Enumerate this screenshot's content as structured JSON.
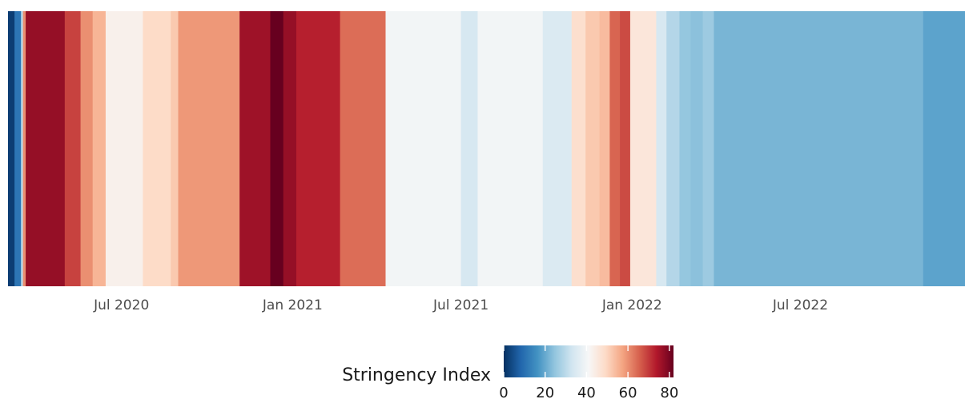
{
  "chart_data": {
    "type": "heatmap",
    "title": "",
    "xlabel": "",
    "ylabel": "",
    "x_ticks": [
      "Jul 2020",
      "Jan 2021",
      "Jul 2021",
      "Jan 2022",
      "Jul 2022"
    ],
    "x_tick_dates": [
      "2020-07-01",
      "2021-01-01",
      "2021-07-01",
      "2022-01-01",
      "2022-07-01"
    ],
    "xlim": [
      "2020-03-01",
      "2022-12-25"
    ],
    "grid": false,
    "colorbar": {
      "title": "Stringency Index",
      "ticks": [
        0,
        20,
        40,
        60,
        80
      ],
      "range": [
        0,
        82
      ],
      "palette": [
        "#053061",
        "#2166ac",
        "#4393c3",
        "#92c5de",
        "#d1e5f0",
        "#f7f7f7",
        "#fddbc7",
        "#f4a582",
        "#d6604d",
        "#b2182b",
        "#67001f"
      ],
      "placement": "bottom"
    },
    "segments": [
      {
        "start": "2020-03-01",
        "end": "2020-03-08",
        "value": 2
      },
      {
        "start": "2020-03-08",
        "end": "2020-03-15",
        "value": 11
      },
      {
        "start": "2020-03-15",
        "end": "2020-03-17",
        "value": 30
      },
      {
        "start": "2020-03-17",
        "end": "2020-03-20",
        "value": 60
      },
      {
        "start": "2020-03-20",
        "end": "2020-05-01",
        "value": 77
      },
      {
        "start": "2020-05-01",
        "end": "2020-05-18",
        "value": 69
      },
      {
        "start": "2020-05-18",
        "end": "2020-05-31",
        "value": 60
      },
      {
        "start": "2020-05-31",
        "end": "2020-06-14",
        "value": 55
      },
      {
        "start": "2020-06-14",
        "end": "2020-07-24",
        "value": 43
      },
      {
        "start": "2020-07-24",
        "end": "2020-08-23",
        "value": 49
      },
      {
        "start": "2020-08-23",
        "end": "2020-08-31",
        "value": 52
      },
      {
        "start": "2020-08-31",
        "end": "2020-11-05",
        "value": 59
      },
      {
        "start": "2020-11-05",
        "end": "2020-12-08",
        "value": 76
      },
      {
        "start": "2020-12-08",
        "end": "2020-12-22",
        "value": 82
      },
      {
        "start": "2020-12-22",
        "end": "2021-01-05",
        "value": 77
      },
      {
        "start": "2021-01-05",
        "end": "2021-02-21",
        "value": 73
      },
      {
        "start": "2021-02-21",
        "end": "2021-04-11",
        "value": 64
      },
      {
        "start": "2021-04-11",
        "end": "2021-07-01",
        "value": 40
      },
      {
        "start": "2021-07-01",
        "end": "2021-07-19",
        "value": 34
      },
      {
        "start": "2021-07-19",
        "end": "2021-09-27",
        "value": 40
      },
      {
        "start": "2021-09-27",
        "end": "2021-10-28",
        "value": 35
      },
      {
        "start": "2021-10-28",
        "end": "2021-11-12",
        "value": 48
      },
      {
        "start": "2021-11-12",
        "end": "2021-11-27",
        "value": 52
      },
      {
        "start": "2021-11-27",
        "end": "2021-12-08",
        "value": 54
      },
      {
        "start": "2021-12-08",
        "end": "2021-12-19",
        "value": 65
      },
      {
        "start": "2021-12-19",
        "end": "2021-12-30",
        "value": 68
      },
      {
        "start": "2021-12-30",
        "end": "2022-01-27",
        "value": 46
      },
      {
        "start": "2022-01-27",
        "end": "2022-02-07",
        "value": 34
      },
      {
        "start": "2022-02-07",
        "end": "2022-02-21",
        "value": 29
      },
      {
        "start": "2022-02-21",
        "end": "2022-03-05",
        "value": 25
      },
      {
        "start": "2022-03-05",
        "end": "2022-03-18",
        "value": 24
      },
      {
        "start": "2022-03-18",
        "end": "2022-03-30",
        "value": 26
      },
      {
        "start": "2022-03-30",
        "end": "2022-11-10",
        "value": 22
      },
      {
        "start": "2022-11-10",
        "end": "2022-12-25",
        "value": 19
      }
    ]
  }
}
